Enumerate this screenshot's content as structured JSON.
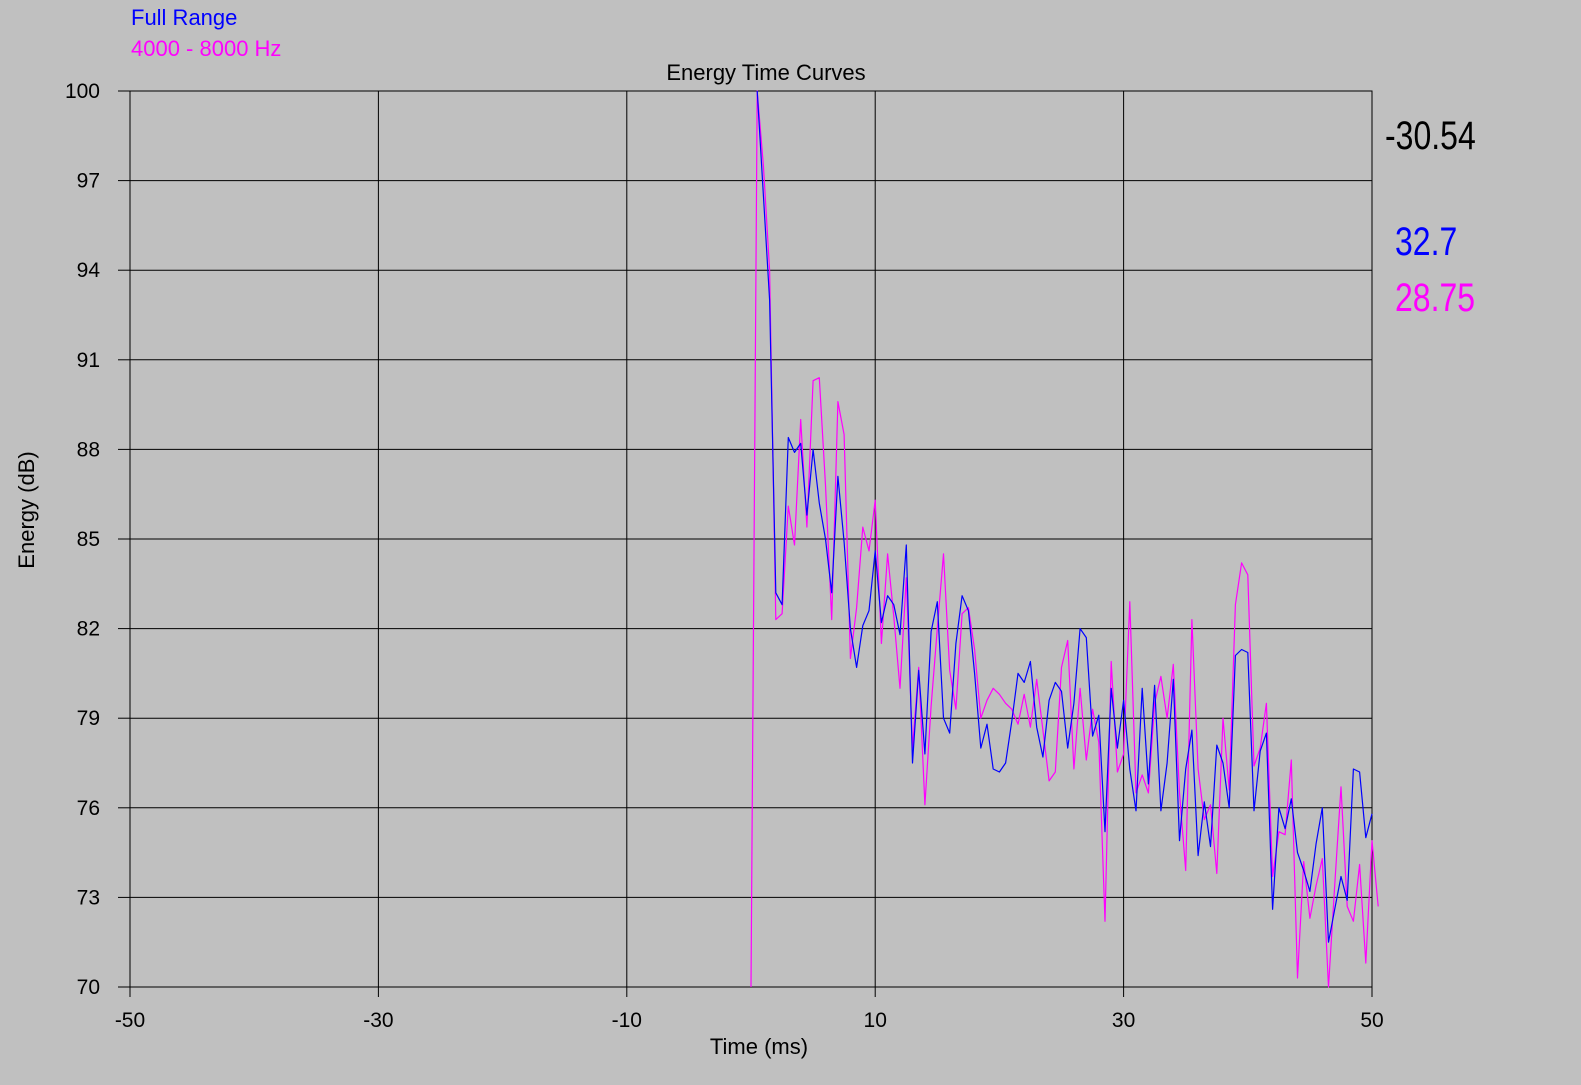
{
  "colors": {
    "background": "#c0c0c0",
    "grid": "#000000",
    "text": "#000000",
    "series_full": "#0000ff",
    "series_band": "#ff00ff"
  },
  "side_values": [
    {
      "text": "-30.54",
      "color": "#000000"
    },
    {
      "text": "32.7",
      "color": "#0000ff"
    },
    {
      "text": "28.75",
      "color": "#ff00ff"
    }
  ],
  "chart_data": {
    "type": "line",
    "title": "Energy Time Curves",
    "xlabel": "Time (ms)",
    "ylabel": "Energy (dB)",
    "xlim": [
      -50,
      50
    ],
    "ylim": [
      70,
      100
    ],
    "xticks": [
      -50,
      -30,
      -10,
      10,
      30,
      50
    ],
    "xtick_labels": [
      "-50",
      "-30",
      "-10",
      "10",
      "30",
      "50"
    ],
    "yticks": [
      100,
      97,
      94,
      91,
      88,
      85,
      82,
      79,
      76,
      73,
      70
    ],
    "ytick_labels": [
      "100",
      "97",
      "94",
      "91",
      "88",
      "85",
      "82",
      "79",
      "76",
      "73",
      "70"
    ],
    "grid": true,
    "legend_position": "top-left",
    "series": [
      {
        "name": "Full Range",
        "color": "#0000ff",
        "points": [
          [
            0.5,
            100
          ],
          [
            1.0,
            96.5
          ],
          [
            1.5,
            93
          ],
          [
            2.0,
            83.2
          ],
          [
            2.5,
            82.8
          ],
          [
            3.0,
            88.4
          ],
          [
            3.5,
            87.9
          ],
          [
            4.0,
            88.2
          ],
          [
            4.5,
            85.8
          ],
          [
            5.0,
            88.0
          ],
          [
            5.5,
            86.2
          ],
          [
            6.0,
            85.0
          ],
          [
            6.5,
            83.2
          ],
          [
            7.0,
            87.1
          ],
          [
            7.5,
            84.9
          ],
          [
            8.0,
            82.0
          ],
          [
            8.5,
            80.7
          ],
          [
            9.0,
            82.1
          ],
          [
            9.5,
            82.6
          ],
          [
            10.0,
            84.6
          ],
          [
            10.5,
            82.2
          ],
          [
            11.0,
            83.1
          ],
          [
            11.5,
            82.8
          ],
          [
            12.0,
            81.8
          ],
          [
            12.5,
            84.8
          ],
          [
            13.0,
            77.5
          ],
          [
            13.5,
            80.6
          ],
          [
            14.0,
            77.8
          ],
          [
            14.5,
            81.9
          ],
          [
            15.0,
            82.9
          ],
          [
            15.5,
            79.0
          ],
          [
            16.0,
            78.5
          ],
          [
            16.5,
            81.5
          ],
          [
            17.0,
            83.1
          ],
          [
            17.5,
            82.6
          ],
          [
            18.0,
            80.5
          ],
          [
            18.5,
            78.0
          ],
          [
            19.0,
            78.8
          ],
          [
            19.5,
            77.3
          ],
          [
            20.0,
            77.2
          ],
          [
            20.5,
            77.5
          ],
          [
            21.0,
            78.9
          ],
          [
            21.5,
            80.5
          ],
          [
            22.0,
            80.2
          ],
          [
            22.5,
            80.9
          ],
          [
            23.0,
            78.7
          ],
          [
            23.5,
            77.7
          ],
          [
            24.0,
            79.6
          ],
          [
            24.5,
            80.2
          ],
          [
            25.0,
            79.9
          ],
          [
            25.5,
            78.0
          ],
          [
            26.0,
            79.5
          ],
          [
            26.5,
            82.0
          ],
          [
            27.0,
            81.7
          ],
          [
            27.5,
            78.4
          ],
          [
            28.0,
            79.1
          ],
          [
            28.5,
            75.2
          ],
          [
            29.0,
            80.0
          ],
          [
            29.5,
            78.0
          ],
          [
            30.0,
            79.6
          ],
          [
            30.5,
            77.3
          ],
          [
            31.0,
            75.9
          ],
          [
            31.5,
            80.0
          ],
          [
            32.0,
            76.8
          ],
          [
            32.5,
            80.1
          ],
          [
            33.0,
            75.9
          ],
          [
            33.5,
            77.5
          ],
          [
            34.0,
            80.3
          ],
          [
            34.5,
            74.9
          ],
          [
            35.0,
            77.3
          ],
          [
            35.5,
            78.6
          ],
          [
            36.0,
            74.4
          ],
          [
            36.5,
            76.2
          ],
          [
            37.0,
            74.7
          ],
          [
            37.5,
            78.1
          ],
          [
            38.0,
            77.5
          ],
          [
            38.5,
            76.0
          ],
          [
            39.0,
            81.1
          ],
          [
            39.5,
            81.3
          ],
          [
            40.0,
            81.2
          ],
          [
            40.5,
            75.9
          ],
          [
            41.0,
            77.9
          ],
          [
            41.5,
            78.5
          ],
          [
            42.0,
            72.6
          ],
          [
            42.5,
            76.0
          ],
          [
            43.0,
            75.3
          ],
          [
            43.5,
            76.3
          ],
          [
            44.0,
            74.5
          ],
          [
            44.5,
            73.9
          ],
          [
            45.0,
            73.2
          ],
          [
            45.5,
            74.8
          ],
          [
            46.0,
            76.0
          ],
          [
            46.5,
            71.5
          ],
          [
            47.0,
            72.6
          ],
          [
            47.5,
            73.7
          ],
          [
            48.0,
            72.9
          ],
          [
            48.5,
            77.3
          ],
          [
            49.0,
            77.2
          ],
          [
            49.5,
            75.0
          ],
          [
            50.0,
            75.8
          ]
        ]
      },
      {
        "name": "4000 - 8000 Hz",
        "color": "#ff00ff",
        "points": [
          [
            0.0,
            70
          ],
          [
            0.5,
            100
          ],
          [
            1.0,
            97.5
          ],
          [
            1.5,
            94
          ],
          [
            2.0,
            82.3
          ],
          [
            2.5,
            82.5
          ],
          [
            3.0,
            86.1
          ],
          [
            3.5,
            84.8
          ],
          [
            4.0,
            89.0
          ],
          [
            4.5,
            85.4
          ],
          [
            5.0,
            90.3
          ],
          [
            5.5,
            90.4
          ],
          [
            6.0,
            86.8
          ],
          [
            6.5,
            82.3
          ],
          [
            7.0,
            89.6
          ],
          [
            7.5,
            88.5
          ],
          [
            8.0,
            81.0
          ],
          [
            8.5,
            82.7
          ],
          [
            9.0,
            85.4
          ],
          [
            9.5,
            84.6
          ],
          [
            10.0,
            86.3
          ],
          [
            10.5,
            81.5
          ],
          [
            11.0,
            84.5
          ],
          [
            11.5,
            82.4
          ],
          [
            12.0,
            80.0
          ],
          [
            12.5,
            83.7
          ],
          [
            13.0,
            78.0
          ],
          [
            13.5,
            80.7
          ],
          [
            14.0,
            76.1
          ],
          [
            14.5,
            79.4
          ],
          [
            15.0,
            82.0
          ],
          [
            15.5,
            84.5
          ],
          [
            16.0,
            80.6
          ],
          [
            16.5,
            79.3
          ],
          [
            17.0,
            82.5
          ],
          [
            17.5,
            82.7
          ],
          [
            18.0,
            81.3
          ],
          [
            18.5,
            79.0
          ],
          [
            19.0,
            79.6
          ],
          [
            19.5,
            80.0
          ],
          [
            20.0,
            79.8
          ],
          [
            20.5,
            79.5
          ],
          [
            21.0,
            79.3
          ],
          [
            21.5,
            78.8
          ],
          [
            22.0,
            79.8
          ],
          [
            22.5,
            78.7
          ],
          [
            23.0,
            80.3
          ],
          [
            23.5,
            78.6
          ],
          [
            24.0,
            76.9
          ],
          [
            24.5,
            77.2
          ],
          [
            25.0,
            80.7
          ],
          [
            25.5,
            81.6
          ],
          [
            26.0,
            77.3
          ],
          [
            26.5,
            80.0
          ],
          [
            27.0,
            77.6
          ],
          [
            27.5,
            79.3
          ],
          [
            28.0,
            78.2
          ],
          [
            28.5,
            72.2
          ],
          [
            29.0,
            80.9
          ],
          [
            29.5,
            77.2
          ],
          [
            30.0,
            77.8
          ],
          [
            30.5,
            82.9
          ],
          [
            31.0,
            76.5
          ],
          [
            31.5,
            77.1
          ],
          [
            32.0,
            76.5
          ],
          [
            32.5,
            79.5
          ],
          [
            33.0,
            80.4
          ],
          [
            33.5,
            79.0
          ],
          [
            34.0,
            80.8
          ],
          [
            34.5,
            76.5
          ],
          [
            35.0,
            73.9
          ],
          [
            35.5,
            82.3
          ],
          [
            36.0,
            77.3
          ],
          [
            36.5,
            75.6
          ],
          [
            37.0,
            76.1
          ],
          [
            37.5,
            73.8
          ],
          [
            38.0,
            79.0
          ],
          [
            38.5,
            76.6
          ],
          [
            39.0,
            82.8
          ],
          [
            39.5,
            84.2
          ],
          [
            40.0,
            83.8
          ],
          [
            40.5,
            77.4
          ],
          [
            41.0,
            78.0
          ],
          [
            41.5,
            79.5
          ],
          [
            42.0,
            73.7
          ],
          [
            42.5,
            75.2
          ],
          [
            43.0,
            75.1
          ],
          [
            43.5,
            77.6
          ],
          [
            44.0,
            70.3
          ],
          [
            44.5,
            74.2
          ],
          [
            45.0,
            72.3
          ],
          [
            45.5,
            73.4
          ],
          [
            46.0,
            74.3
          ],
          [
            46.5,
            70.0
          ],
          [
            47.0,
            73.4
          ],
          [
            47.5,
            76.7
          ],
          [
            48.0,
            72.7
          ],
          [
            48.5,
            72.2
          ],
          [
            49.0,
            74.1
          ],
          [
            49.5,
            70.8
          ],
          [
            50.0,
            74.9
          ],
          [
            50.5,
            72.7
          ]
        ]
      }
    ]
  }
}
